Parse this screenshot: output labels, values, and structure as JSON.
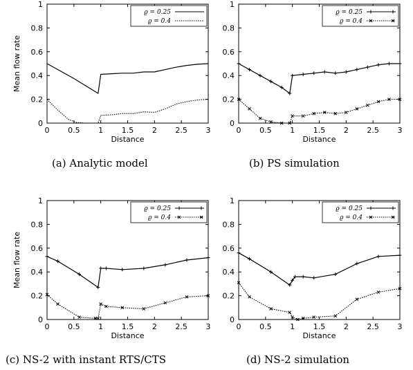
{
  "figure": {
    "captions": [
      "(a) Analytic model",
      "(b) PS simulation",
      "(c) NS-2 with instant RTS/CTS",
      "(d) NS-2 simulation"
    ]
  },
  "chart_data": [
    {
      "type": "line",
      "caption": "(a) Analytic model",
      "xlabel": "Distance",
      "ylabel": "Mean flow rate",
      "xlim": [
        0,
        3
      ],
      "ylim": [
        0,
        1
      ],
      "xticks": [
        "0",
        "0.5",
        "1",
        "1.5",
        "2",
        "2.5",
        "3"
      ],
      "yticks": [
        "0",
        "0.2",
        "0.4",
        "0.6",
        "0.8",
        "1"
      ],
      "grid": false,
      "legend_position": "top-right",
      "series": [
        {
          "name": "ϱ = 0.25",
          "style": "solid",
          "markers": false,
          "points": [
            [
              0,
              0.5
            ],
            [
              0.5,
              0.375
            ],
            [
              0.95,
              0.25
            ],
            [
              1.0,
              0.41
            ],
            [
              1.2,
              0.415
            ],
            [
              1.4,
              0.42
            ],
            [
              1.6,
              0.42
            ],
            [
              1.8,
              0.43
            ],
            [
              2.0,
              0.43
            ],
            [
              2.2,
              0.45
            ],
            [
              2.4,
              0.47
            ],
            [
              2.6,
              0.485
            ],
            [
              2.8,
              0.495
            ],
            [
              3.0,
              0.5
            ]
          ]
        },
        {
          "name": "ϱ = 0.4",
          "style": "dotted",
          "markers": false,
          "points": [
            [
              0,
              0.2
            ],
            [
              0.2,
              0.11
            ],
            [
              0.4,
              0.03
            ],
            [
              0.55,
              0.005
            ],
            [
              0.7,
              0.0
            ],
            [
              0.95,
              0.0
            ],
            [
              1.0,
              0.065
            ],
            [
              1.2,
              0.07
            ],
            [
              1.4,
              0.08
            ],
            [
              1.6,
              0.08
            ],
            [
              1.8,
              0.095
            ],
            [
              2.0,
              0.09
            ],
            [
              2.2,
              0.12
            ],
            [
              2.4,
              0.16
            ],
            [
              2.6,
              0.18
            ],
            [
              2.8,
              0.195
            ],
            [
              3.0,
              0.2
            ]
          ]
        }
      ]
    },
    {
      "type": "line",
      "caption": "(b) PS simulation",
      "xlabel": "Distance",
      "ylabel": "",
      "xlim": [
        0,
        3
      ],
      "ylim": [
        0,
        1
      ],
      "xticks": [
        "0",
        "0.5",
        "1",
        "1.5",
        "2",
        "2.5",
        "3"
      ],
      "yticks": [
        "0",
        "0.2",
        "0.4",
        "0.6",
        "0.8",
        "1"
      ],
      "grid": false,
      "legend_position": "top-right",
      "series": [
        {
          "name": "ϱ = 0.25",
          "style": "solid",
          "markers": true,
          "points": [
            [
              0,
              0.5
            ],
            [
              0.2,
              0.45
            ],
            [
              0.4,
              0.4
            ],
            [
              0.6,
              0.35
            ],
            [
              0.8,
              0.3
            ],
            [
              0.95,
              0.25
            ],
            [
              1.0,
              0.4
            ],
            [
              1.2,
              0.41
            ],
            [
              1.4,
              0.42
            ],
            [
              1.6,
              0.43
            ],
            [
              1.8,
              0.42
            ],
            [
              2.0,
              0.43
            ],
            [
              2.2,
              0.45
            ],
            [
              2.4,
              0.47
            ],
            [
              2.6,
              0.49
            ],
            [
              2.8,
              0.5
            ],
            [
              3.0,
              0.5
            ]
          ]
        },
        {
          "name": "ϱ = 0.4",
          "style": "dotted",
          "markers": true,
          "points": [
            [
              0,
              0.2
            ],
            [
              0.2,
              0.12
            ],
            [
              0.4,
              0.04
            ],
            [
              0.6,
              0.01
            ],
            [
              0.8,
              0.0
            ],
            [
              0.95,
              0.0
            ],
            [
              1.0,
              0.06
            ],
            [
              1.2,
              0.06
            ],
            [
              1.4,
              0.08
            ],
            [
              1.6,
              0.09
            ],
            [
              1.8,
              0.08
            ],
            [
              2.0,
              0.09
            ],
            [
              2.2,
              0.12
            ],
            [
              2.4,
              0.15
            ],
            [
              2.6,
              0.18
            ],
            [
              2.8,
              0.2
            ],
            [
              3.0,
              0.2
            ]
          ]
        }
      ]
    },
    {
      "type": "line",
      "caption": "(c) NS-2 with instant RTS/CTS",
      "xlabel": "Distance",
      "ylabel": "Mean flow rate",
      "xlim": [
        0,
        3
      ],
      "ylim": [
        0,
        1
      ],
      "xticks": [
        "0",
        "0.5",
        "1",
        "1.5",
        "2",
        "2.5",
        "3"
      ],
      "yticks": [
        "0",
        "0.2",
        "0.4",
        "0.6",
        "0.8",
        "1"
      ],
      "grid": false,
      "legend_position": "top-right",
      "series": [
        {
          "name": "ϱ = 0.25",
          "style": "solid",
          "markers": true,
          "points": [
            [
              0,
              0.53
            ],
            [
              0.2,
              0.49
            ],
            [
              0.6,
              0.38
            ],
            [
              0.95,
              0.27
            ],
            [
              1.0,
              0.43
            ],
            [
              1.1,
              0.43
            ],
            [
              1.4,
              0.42
            ],
            [
              1.8,
              0.43
            ],
            [
              2.2,
              0.46
            ],
            [
              2.6,
              0.5
            ],
            [
              3.0,
              0.52
            ]
          ]
        },
        {
          "name": "ϱ = 0.4",
          "style": "dotted",
          "markers": true,
          "points": [
            [
              0,
              0.21
            ],
            [
              0.2,
              0.13
            ],
            [
              0.6,
              0.02
            ],
            [
              0.9,
              0.01
            ],
            [
              0.95,
              0.01
            ],
            [
              1.0,
              0.13
            ],
            [
              1.1,
              0.11
            ],
            [
              1.4,
              0.1
            ],
            [
              1.8,
              0.09
            ],
            [
              2.2,
              0.14
            ],
            [
              2.6,
              0.19
            ],
            [
              3.0,
              0.2
            ]
          ]
        }
      ]
    },
    {
      "type": "line",
      "caption": "(d) NS-2 simulation",
      "xlabel": "Distance",
      "ylabel": "",
      "xlim": [
        0,
        3
      ],
      "ylim": [
        0,
        1
      ],
      "xticks": [
        "0",
        "0.5",
        "1",
        "1.5",
        "2",
        "2.5",
        "3"
      ],
      "yticks": [
        "0",
        "0.2",
        "0.4",
        "0.6",
        "0.8",
        "1"
      ],
      "grid": false,
      "legend_position": "top-right",
      "series": [
        {
          "name": "ϱ = 0.25",
          "style": "solid",
          "markers": true,
          "points": [
            [
              0,
              0.56
            ],
            [
              0.2,
              0.51
            ],
            [
              0.6,
              0.4
            ],
            [
              0.95,
              0.29
            ],
            [
              1.0,
              0.33
            ],
            [
              1.05,
              0.36
            ],
            [
              1.2,
              0.36
            ],
            [
              1.4,
              0.35
            ],
            [
              1.8,
              0.38
            ],
            [
              2.2,
              0.47
            ],
            [
              2.6,
              0.53
            ],
            [
              3.0,
              0.54
            ]
          ]
        },
        {
          "name": "ϱ = 0.4",
          "style": "dotted",
          "markers": true,
          "points": [
            [
              0,
              0.31
            ],
            [
              0.2,
              0.19
            ],
            [
              0.6,
              0.09
            ],
            [
              0.95,
              0.06
            ],
            [
              1.0,
              0.02
            ],
            [
              1.1,
              0.0
            ],
            [
              1.2,
              0.01
            ],
            [
              1.4,
              0.02
            ],
            [
              1.8,
              0.03
            ],
            [
              2.2,
              0.17
            ],
            [
              2.6,
              0.23
            ],
            [
              3.0,
              0.26
            ]
          ]
        }
      ]
    }
  ]
}
